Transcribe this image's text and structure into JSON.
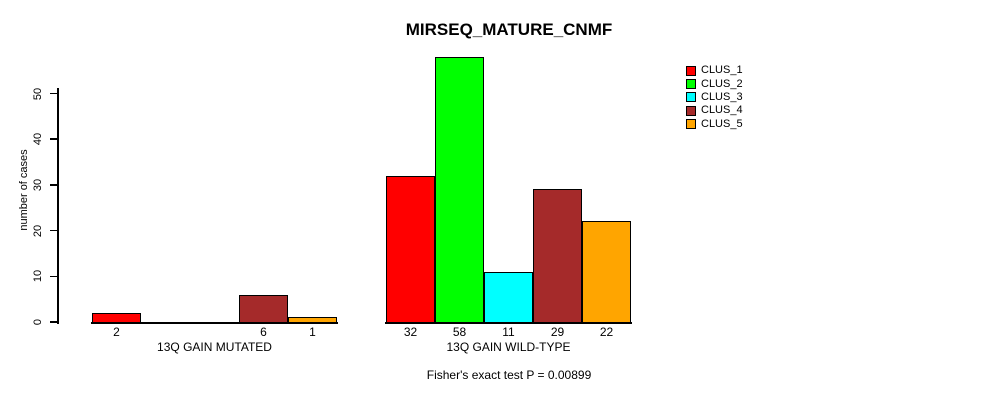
{
  "chart_data": {
    "type": "bar",
    "title": "MIRSEQ_MATURE_CNMF",
    "ylabel": "number of cases",
    "xlabel": "",
    "ylim": [
      0,
      58
    ],
    "yticks": [
      0,
      10,
      20,
      30,
      40,
      50
    ],
    "grid": false,
    "legend_position": "top-right-outside-plot",
    "series": [
      "CLUS_1",
      "CLUS_2",
      "CLUS_3",
      "CLUS_4",
      "CLUS_5"
    ],
    "colors": [
      "#FF0000",
      "#00FF00",
      "#00FFFF",
      "#A52A2A",
      "#FFA500"
    ],
    "groups": [
      {
        "label": "13Q GAIN MUTATED",
        "values": [
          2,
          0,
          0,
          6,
          1
        ]
      },
      {
        "label": "13Q GAIN WILD-TYPE",
        "values": [
          32,
          58,
          11,
          29,
          22
        ]
      }
    ],
    "footnote": "Fisher's exact test P = 0.00899"
  }
}
